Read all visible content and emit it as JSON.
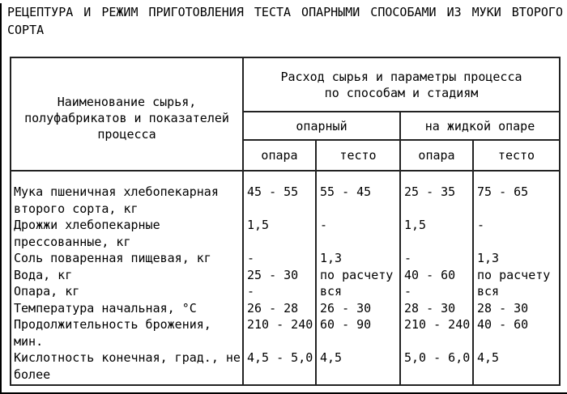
{
  "title": "РЕЦЕПТУРА И РЕЖИМ ПРИГОТОВЛЕНИЯ ТЕСТА ОПАРНЫМИ СПОСОБАМИ ИЗ МУКИ ВТОРОГО СОРТА",
  "colors": {
    "border": "#222222",
    "text": "#000000",
    "background": "#ffffff",
    "frame": "#000000"
  },
  "table": {
    "items_header": "Наименование сырья,\nполуфабрикатов и показателей\nпроцесса",
    "group_header": "Расход сырья и параметры процесса\nпо способам и стадиям",
    "methods": [
      "опарный",
      "на жидкой опаре"
    ],
    "stages": [
      "опара",
      "тесто",
      "опара",
      "тесто"
    ],
    "rows": [
      {
        "item": "Мука пшеничная хлебопекарная второго сорта, кг",
        "item_lines": [
          "Мука пшеничная хлебопекарная",
          "второго сорта, кг"
        ],
        "values": [
          "45 - 55",
          "55 - 45",
          "25 - 35",
          "75 - 65"
        ]
      },
      {
        "item": "Дрожжи хлебопекарные прессованные, кг",
        "item_lines": [
          "Дрожжи хлебопекарные",
          "прессованные, кг"
        ],
        "values": [
          "1,5",
          "-",
          "1,5",
          "-"
        ]
      },
      {
        "item": "Соль поваренная пищевая, кг",
        "item_lines": [
          "Соль поваренная пищевая, кг"
        ],
        "values": [
          "-",
          "1,3",
          "-",
          "1,3"
        ]
      },
      {
        "item": "Вода, кг",
        "item_lines": [
          "Вода, кг"
        ],
        "values": [
          "25 - 30",
          "по расчету",
          "40 - 60",
          "по расчету"
        ]
      },
      {
        "item": "Опара, кг",
        "item_lines": [
          "Опара, кг"
        ],
        "values": [
          "-",
          "вся",
          "-",
          "вся"
        ]
      },
      {
        "item": "Температура начальная, °С",
        "item_lines": [
          "Температура начальная, °С"
        ],
        "values": [
          "26 - 28",
          "26 - 30",
          "28 - 30",
          "28 - 30"
        ]
      },
      {
        "item": "Продолжительность брожения, мин.",
        "item_lines": [
          "Продолжительность брожения,",
          "мин."
        ],
        "values": [
          "210 - 240",
          "60 - 90",
          "210 - 240",
          "40 - 60"
        ]
      },
      {
        "item": "Кислотность конечная, град., не более",
        "item_lines": [
          "Кислотность конечная, град., не",
          "более"
        ],
        "values": [
          "4,5 - 5,0",
          "4,5",
          "5,0 - 6,0",
          "4,5"
        ]
      }
    ]
  }
}
